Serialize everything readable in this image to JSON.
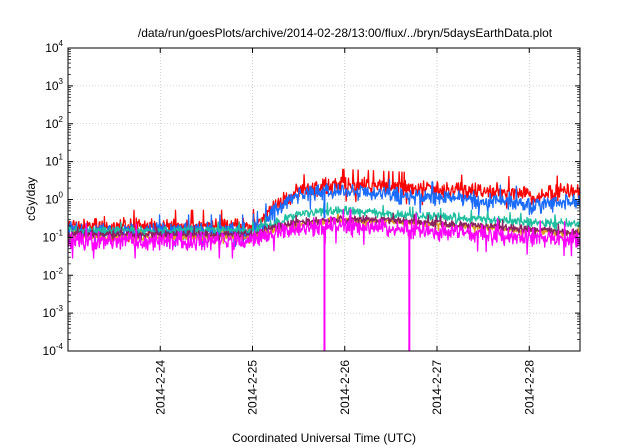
{
  "chart_data": {
    "type": "line",
    "title": "/data/run/goesPlots/archive/2014-02-28/13:00/flux/../bryn/5daysEarthData.plot",
    "xlabel": "Coordinated Universal Time (UTC)",
    "ylabel": "cGy/day",
    "yscale": "log",
    "ylim": [
      0.0001,
      10000
    ],
    "xlim": [
      -1.0,
      4.55
    ],
    "x_unit": "days since 2014-2-24 00:00 UTC",
    "grid": true,
    "legend": "none",
    "y_ticks": [
      {
        "value": 0.0001,
        "base": "10",
        "exp": "-4"
      },
      {
        "value": 0.001,
        "base": "10",
        "exp": "-3"
      },
      {
        "value": 0.01,
        "base": "10",
        "exp": "-2"
      },
      {
        "value": 0.1,
        "base": "10",
        "exp": "-1"
      },
      {
        "value": 1,
        "base": "10",
        "exp": "0"
      },
      {
        "value": 10,
        "base": "10",
        "exp": "1"
      },
      {
        "value": 100,
        "base": "10",
        "exp": "2"
      },
      {
        "value": 1000,
        "base": "10",
        "exp": "3"
      },
      {
        "value": 10000,
        "base": "10",
        "exp": "4"
      }
    ],
    "x_ticks": [
      {
        "value": 0,
        "label": "2014-2-24"
      },
      {
        "value": 1,
        "label": "2014-2-25"
      },
      {
        "value": 2,
        "label": "2014-2-26"
      },
      {
        "value": 3,
        "label": "2014-2-27"
      },
      {
        "value": 4,
        "label": "2014-2-28"
      }
    ],
    "series": [
      {
        "name": "red",
        "color": "#ff0000",
        "noise": 0.13,
        "seed": 11,
        "x": [
          -1.0,
          1.0,
          1.1,
          1.2,
          1.35,
          1.5,
          1.7,
          1.9,
          2.0,
          2.3,
          2.7,
          3.2,
          3.6,
          3.9,
          4.05,
          4.2,
          4.4,
          4.55
        ],
        "values": [
          0.2,
          0.2,
          0.3,
          0.55,
          1.0,
          1.6,
          2.1,
          2.4,
          2.4,
          2.2,
          2.0,
          1.7,
          1.6,
          1.5,
          1.1,
          1.5,
          1.7,
          1.6
        ]
      },
      {
        "name": "blue",
        "color": "#1a6bff",
        "noise": 0.13,
        "seed": 23,
        "x": [
          -1.0,
          1.0,
          1.1,
          1.2,
          1.35,
          1.5,
          1.7,
          1.9,
          2.0,
          2.3,
          2.7,
          3.2,
          3.6,
          3.9,
          4.05,
          4.2,
          4.4,
          4.55
        ],
        "values": [
          0.15,
          0.15,
          0.22,
          0.42,
          0.8,
          1.3,
          1.55,
          1.7,
          1.6,
          1.4,
          1.2,
          1.05,
          0.95,
          0.85,
          0.6,
          0.8,
          0.9,
          0.85
        ]
      },
      {
        "name": "teal",
        "color": "#1fbfa0",
        "noise": 0.07,
        "seed": 37,
        "x": [
          -1.0,
          1.0,
          1.2,
          1.4,
          1.6,
          1.9,
          2.0,
          2.5,
          3.0,
          3.5,
          4.0,
          4.55
        ],
        "values": [
          0.15,
          0.15,
          0.22,
          0.35,
          0.45,
          0.5,
          0.5,
          0.4,
          0.35,
          0.3,
          0.25,
          0.22
        ]
      },
      {
        "name": "orange",
        "color": "#e0a020",
        "noise": 0.05,
        "seed": 41,
        "x": [
          -1.0,
          1.0,
          1.2,
          1.5,
          1.9,
          2.5,
          3.0,
          3.5,
          4.0,
          4.55
        ],
        "values": [
          0.1,
          0.1,
          0.15,
          0.22,
          0.28,
          0.26,
          0.22,
          0.18,
          0.15,
          0.12
        ]
      },
      {
        "name": "purple",
        "color": "#8a2060",
        "noise": 0.06,
        "seed": 53,
        "x": [
          -1.0,
          1.0,
          1.2,
          1.5,
          1.9,
          2.5,
          3.0,
          3.5,
          4.0,
          4.55
        ],
        "values": [
          0.12,
          0.12,
          0.18,
          0.25,
          0.3,
          0.28,
          0.24,
          0.2,
          0.16,
          0.13
        ]
      },
      {
        "name": "magenta",
        "color": "#ff00ff",
        "noise": 0.14,
        "seed": 67,
        "x": [
          -1.0,
          1.0,
          1.2,
          1.5,
          1.9,
          2.5,
          3.0,
          3.5,
          4.0,
          4.55
        ],
        "values": [
          0.08,
          0.08,
          0.12,
          0.17,
          0.2,
          0.17,
          0.14,
          0.12,
          0.1,
          0.09
        ],
        "dropouts": [
          1.78,
          2.7
        ],
        "dropout_floor": 0.0001
      }
    ],
    "blue_spike": {
      "x": 1.78,
      "peak": 1.6
    }
  }
}
